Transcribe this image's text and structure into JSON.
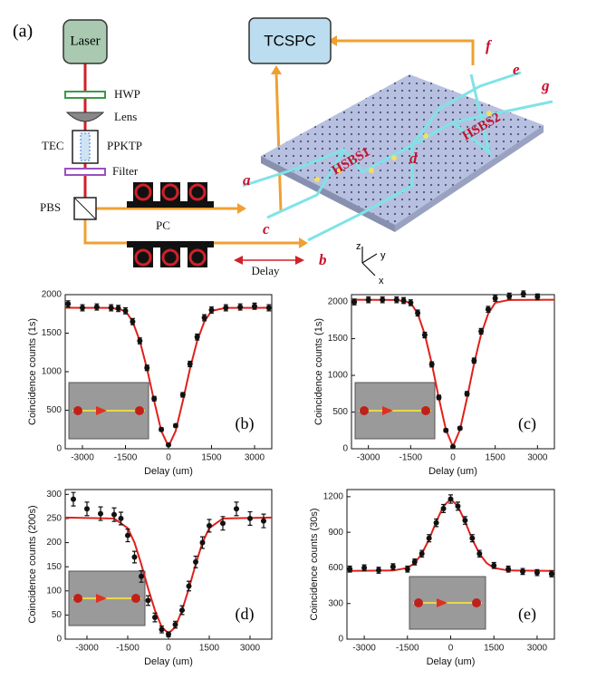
{
  "diagram": {
    "panel": "(a)",
    "laser": "Laser",
    "hwp": "HWP",
    "lens": "Lens",
    "tec": "TEC",
    "ppktp": "PPKTP",
    "filter": "Filter",
    "pbs": "PBS",
    "pc": "PC",
    "delay": "Delay",
    "tcspc": "TCSPC",
    "hsbs1": "HSBS1",
    "hsbs2": "HSBS2",
    "port_a": "a",
    "port_b": "b",
    "port_c": "c",
    "port_d": "d",
    "port_e": "e",
    "port_f": "f",
    "port_g": "g",
    "axis_z": "z",
    "axis_y": "y",
    "axis_x": "x"
  },
  "chart_data": [
    {
      "type": "scatter",
      "annotation": "(b)",
      "xlabel": "Delay (um)",
      "ylabel": "Coincidence counts (1s)",
      "xlim": [
        -3600,
        3600
      ],
      "xticks": [
        -3000,
        -1500,
        0,
        1500,
        3000
      ],
      "ylim": [
        0,
        2000
      ],
      "yticks": [
        0,
        500,
        1000,
        1500,
        2000
      ],
      "series": [
        {
          "color": "#111111",
          "x": [
            -3500,
            -3000,
            -2500,
            -2000,
            -1750,
            -1500,
            -1250,
            -1000,
            -750,
            -500,
            -250,
            0,
            250,
            500,
            750,
            1000,
            1250,
            1500,
            2000,
            2500,
            3000,
            3500
          ],
          "values": [
            1880,
            1830,
            1840,
            1830,
            1820,
            1790,
            1650,
            1400,
            1050,
            650,
            250,
            50,
            300,
            700,
            1100,
            1450,
            1700,
            1800,
            1830,
            1840,
            1850,
            1830
          ],
          "errors": [
            40,
            40,
            40,
            40,
            40,
            40,
            40,
            38,
            35,
            30,
            22,
            12,
            22,
            30,
            35,
            38,
            40,
            40,
            40,
            40,
            40,
            40
          ]
        }
      ],
      "fit": {
        "color": "#e0201a",
        "x": [
          -3600,
          -2000,
          -1500,
          -1250,
          -1000,
          -750,
          -500,
          -250,
          0,
          250,
          500,
          750,
          1000,
          1250,
          1500,
          2000,
          3600
        ],
        "values": [
          1830,
          1828,
          1790,
          1650,
          1400,
          1040,
          620,
          230,
          30,
          230,
          620,
          1040,
          1400,
          1650,
          1790,
          1828,
          1830
        ]
      }
    },
    {
      "type": "scatter",
      "annotation": "(c)",
      "xlabel": "Delay (um)",
      "ylabel": "Coincidence counts (1s)",
      "xlim": [
        -3600,
        3600
      ],
      "xticks": [
        -3000,
        -1500,
        0,
        1500,
        3000
      ],
      "ylim": [
        0,
        2100
      ],
      "yticks": [
        0,
        500,
        1000,
        1500,
        2000
      ],
      "series": [
        {
          "color": "#111111",
          "x": [
            -3500,
            -3000,
            -2500,
            -2000,
            -1750,
            -1500,
            -1250,
            -1000,
            -750,
            -500,
            -250,
            0,
            250,
            500,
            750,
            1000,
            1250,
            1500,
            2000,
            2500,
            3000
          ],
          "values": [
            2000,
            2030,
            2030,
            2030,
            2020,
            1990,
            1850,
            1550,
            1150,
            700,
            250,
            30,
            280,
            750,
            1200,
            1600,
            1900,
            2050,
            2080,
            2110,
            2070
          ],
          "errors": [
            40,
            40,
            40,
            40,
            40,
            40,
            40,
            38,
            35,
            30,
            22,
            12,
            22,
            30,
            35,
            38,
            40,
            40,
            40,
            40,
            40
          ]
        }
      ],
      "fit": {
        "color": "#e0201a",
        "x": [
          -3600,
          -2000,
          -1500,
          -1250,
          -1000,
          -750,
          -500,
          -250,
          0,
          250,
          500,
          750,
          1000,
          1250,
          1500,
          2000,
          3600
        ],
        "values": [
          2030,
          2028,
          1990,
          1840,
          1560,
          1160,
          690,
          260,
          30,
          260,
          690,
          1160,
          1560,
          1840,
          1990,
          2028,
          2030
        ]
      }
    },
    {
      "type": "scatter",
      "annotation": "(d)",
      "xlabel": "Delay (um)",
      "ylabel": "Coincidence counts (200s)",
      "xlim": [
        -3800,
        3800
      ],
      "xticks": [
        -3000,
        -1500,
        0,
        1500,
        3000
      ],
      "ylim": [
        0,
        310
      ],
      "yticks": [
        0,
        50,
        100,
        150,
        200,
        250,
        300
      ],
      "series": [
        {
          "color": "#111111",
          "x": [
            -3500,
            -3000,
            -2500,
            -2000,
            -1750,
            -1500,
            -1250,
            -1000,
            -750,
            -500,
            -250,
            0,
            250,
            500,
            750,
            1000,
            1250,
            1500,
            2000,
            2500,
            3000,
            3500
          ],
          "values": [
            290,
            270,
            260,
            258,
            250,
            215,
            170,
            130,
            80,
            45,
            20,
            10,
            30,
            60,
            110,
            160,
            200,
            235,
            240,
            270,
            250,
            245
          ],
          "errors": [
            14,
            14,
            14,
            14,
            13,
            13,
            12,
            12,
            10,
            9,
            7,
            5,
            7,
            9,
            10,
            12,
            12,
            13,
            14,
            14,
            14,
            14
          ]
        }
      ],
      "fit": {
        "color": "#e0201a",
        "x": [
          -3800,
          -2000,
          -1500,
          -1250,
          -1000,
          -750,
          -500,
          -250,
          0,
          250,
          500,
          750,
          1000,
          1250,
          1500,
          2000,
          3800
        ],
        "values": [
          252,
          250,
          230,
          200,
          155,
          105,
          60,
          25,
          12,
          25,
          60,
          105,
          155,
          200,
          230,
          250,
          252
        ]
      }
    },
    {
      "type": "scatter",
      "annotation": "(e)",
      "xlabel": "Delay (um)",
      "ylabel": "Coincidence counts (30s)",
      "xlim": [
        -3600,
        3600
      ],
      "xticks": [
        -3000,
        -1500,
        0,
        1500,
        3000
      ],
      "ylim": [
        0,
        1260
      ],
      "yticks": [
        0,
        300,
        600,
        900,
        1200
      ],
      "series": [
        {
          "color": "#111111",
          "x": [
            -3500,
            -3000,
            -2500,
            -2000,
            -1500,
            -1250,
            -1000,
            -750,
            -500,
            -250,
            0,
            250,
            500,
            750,
            1000,
            1500,
            2000,
            2500,
            3000,
            3500
          ],
          "values": [
            590,
            600,
            580,
            610,
            590,
            650,
            720,
            850,
            980,
            1100,
            1180,
            1120,
            1000,
            850,
            720,
            620,
            590,
            570,
            560,
            550
          ],
          "errors": [
            25,
            25,
            25,
            25,
            25,
            25,
            28,
            30,
            32,
            34,
            35,
            34,
            32,
            30,
            28,
            25,
            25,
            25,
            25,
            25
          ]
        }
      ],
      "fit": {
        "color": "#e0201a",
        "x": [
          -3600,
          -2000,
          -1500,
          -1250,
          -1000,
          -750,
          -500,
          -250,
          0,
          250,
          500,
          750,
          1000,
          1250,
          1500,
          2000,
          3600
        ],
        "values": [
          575,
          578,
          600,
          640,
          720,
          840,
          990,
          1120,
          1180,
          1120,
          990,
          840,
          720,
          640,
          600,
          578,
          575
        ]
      }
    }
  ]
}
